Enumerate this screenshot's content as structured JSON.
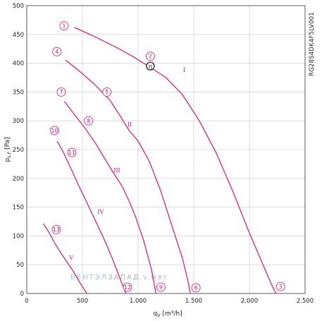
{
  "chart_data": {
    "type": "line",
    "xlabel": "q",
    "xlabel_sub": "V",
    "xlabel_unit": "[m³/h]",
    "ylabel": "p",
    "ylabel_sub": "s,F",
    "ylabel_unit": "[Pa]",
    "xlim": [
      0,
      2500
    ],
    "ylim": [
      0,
      500
    ],
    "x_ticks": [
      0,
      500,
      1000,
      1500,
      2000,
      2500
    ],
    "x_tick_labels": [
      "0",
      "500",
      "1.000",
      "1.500",
      "2.000",
      "2.500"
    ],
    "y_ticks": [
      0,
      50,
      100,
      150,
      200,
      250,
      300,
      350,
      400,
      450,
      500
    ],
    "y_tick_labels": [
      "0",
      "50",
      "100",
      "150",
      "200",
      "250",
      "300",
      "350",
      "400",
      "450",
      "500"
    ],
    "grid": true,
    "model_code": "RG28S4DK4F5LV001",
    "watermark": {
      "part1": "ВЕНТЭЛ",
      "part2": "ЗАПАД",
      "part3": ".V.WBY",
      "color1": "#9ec5e8",
      "color2": "#b0b0b0"
    },
    "curve_color": "#d6247e",
    "series": [
      {
        "name": "I",
        "x": [
          430,
          600,
          800,
          950,
          1100,
          1250,
          1400,
          1550,
          1700,
          1850,
          2000,
          2100,
          2200,
          2240
        ],
        "y": [
          462,
          447,
          428,
          412,
          394,
          375,
          345,
          300,
          245,
          178,
          105,
          60,
          15,
          0
        ]
      },
      {
        "name": "II",
        "x": [
          350,
          450,
          600,
          750,
          850,
          920,
          1000,
          1100,
          1200,
          1300,
          1400,
          1450,
          1470
        ],
        "y": [
          405,
          390,
          365,
          335,
          305,
          283,
          265,
          230,
          180,
          120,
          60,
          20,
          0
        ]
      },
      {
        "name": "III",
        "x": [
          340,
          420,
          520,
          620,
          720,
          800,
          860,
          920,
          980,
          1050,
          1120,
          1160
        ],
        "y": [
          333,
          313,
          288,
          260,
          228,
          203,
          185,
          160,
          132,
          92,
          42,
          0
        ]
      },
      {
        "name": "IV",
        "x": [
          275,
          330,
          390,
          460,
          540,
          620,
          700,
          770,
          840,
          890
        ],
        "y": [
          264,
          245,
          220,
          190,
          158,
          125,
          92,
          60,
          25,
          0
        ]
      },
      {
        "name": "V",
        "x": [
          150,
          200,
          250,
          300,
          360,
          420,
          480,
          540
        ],
        "y": [
          121,
          106,
          88,
          72,
          55,
          38,
          18,
          0
        ]
      }
    ],
    "roman_labels": [
      {
        "text": "I",
        "x": 1415,
        "y": 385
      },
      {
        "text": "II",
        "x": 925,
        "y": 290
      },
      {
        "text": "III",
        "x": 810,
        "y": 210
      },
      {
        "text": "IV",
        "x": 665,
        "y": 138
      },
      {
        "text": "V",
        "x": 400,
        "y": 58
      }
    ],
    "markers": [
      {
        "label": "1",
        "x": 335,
        "y": 465
      },
      {
        "label": "2",
        "x": 1110,
        "y": 412
      },
      {
        "label": "3",
        "x": 2280,
        "y": 12
      },
      {
        "label": "4",
        "x": 270,
        "y": 420
      },
      {
        "label": "5",
        "x": 720,
        "y": 350
      },
      {
        "label": "6",
        "x": 1520,
        "y": 10
      },
      {
        "label": "7",
        "x": 310,
        "y": 350
      },
      {
        "label": "8",
        "x": 555,
        "y": 300
      },
      {
        "label": "9",
        "x": 1205,
        "y": 11
      },
      {
        "label": "10",
        "x": 250,
        "y": 283
      },
      {
        "label": "11",
        "x": 405,
        "y": 245
      },
      {
        "label": "12",
        "x": 905,
        "y": 11
      },
      {
        "label": "13",
        "x": 265,
        "y": 111
      }
    ],
    "optimum_point": {
      "label": "η",
      "x": 1110,
      "y": 395
    }
  }
}
